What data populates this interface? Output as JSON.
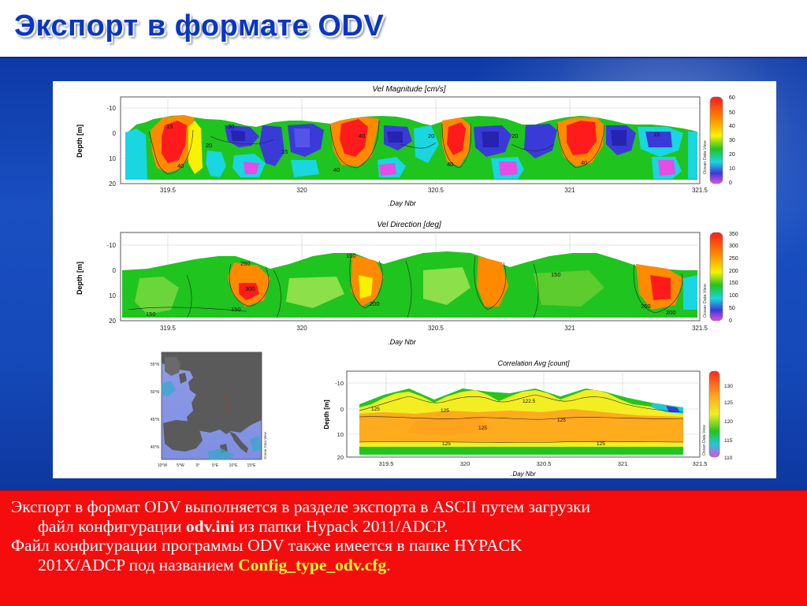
{
  "slide": {
    "title": "Экспорт в формате ODV"
  },
  "plots": {
    "magnitude": {
      "title": "Vel Magnitude [cm/s]",
      "ylabel": "Depth [m]",
      "xlabel": ".Day Nbr",
      "yticks": [
        "-10",
        "0",
        "10",
        "20"
      ],
      "xticks": [
        "319.5",
        "320",
        "320.5",
        "321",
        "321.5"
      ],
      "colorbar": [
        "60",
        "50",
        "40",
        "30",
        "20",
        "10",
        "0"
      ],
      "contours": [
        "15",
        "20",
        "30",
        "40",
        "15",
        "40",
        "20",
        "15",
        "40",
        "20",
        "40",
        "15"
      ],
      "watermark": "Ocean Data View"
    },
    "direction": {
      "title": "Vel Direction [deg]",
      "ylabel": "Depth [m]",
      "xlabel": ".Day Nbr",
      "yticks": [
        "-10",
        "0",
        "10",
        "20"
      ],
      "xticks": [
        "319.5",
        "320",
        "320.5",
        "321",
        "321.5"
      ],
      "colorbar": [
        "350",
        "300",
        "250",
        "200",
        "150",
        "100",
        "50",
        "0"
      ],
      "contours": [
        "250",
        "300",
        "150",
        "150",
        "150",
        "200",
        "150",
        "250",
        "200"
      ],
      "watermark": "Ocean Data View"
    },
    "correlation": {
      "title": "Correlation Avg [count]",
      "ylabel": "Depth [m]",
      "xlabel": ".Day Nbr",
      "yticks": [
        "-10",
        "0",
        "10",
        "20"
      ],
      "xticks": [
        "319.5",
        "320",
        "320.5",
        "321",
        "321.5"
      ],
      "colorbar": [
        "130",
        "125",
        "120",
        "115",
        "110"
      ],
      "contours": [
        "125",
        "122.5",
        "125",
        "125",
        "125",
        "125",
        "125"
      ],
      "watermark": "Ocean Data View"
    },
    "map": {
      "lat_labels": [
        "55°N",
        "50°N",
        "45°N",
        "40°N"
      ],
      "lon_labels": [
        "10°W",
        "5°W",
        "0°",
        "5°E",
        "10°E",
        "15°E"
      ],
      "watermark": "Ocean Data View"
    }
  },
  "text": {
    "p1_line1": "Экспорт в формат ODV выполняется в разделе экспорта в ASCII путем загрузки",
    "p1_line2_a": "файл конфигурации ",
    "p1_line2_bold": "odv.ini",
    "p1_line2_b": " из папки Hypack 2011/ADCP.",
    "p2_line1": "Файл конфигурации программы ODV также имеется в папке HYPACK",
    "p2_line2_a": "201X/ADCP под названием ",
    "p2_line2_highlight": "Config_type_odv.cfg",
    "p2_line2_b": "."
  },
  "colors": {
    "title": "#0a36c4",
    "background": "#1549b9",
    "text_box": "#f50d0d",
    "highlight": "#ffff33"
  }
}
